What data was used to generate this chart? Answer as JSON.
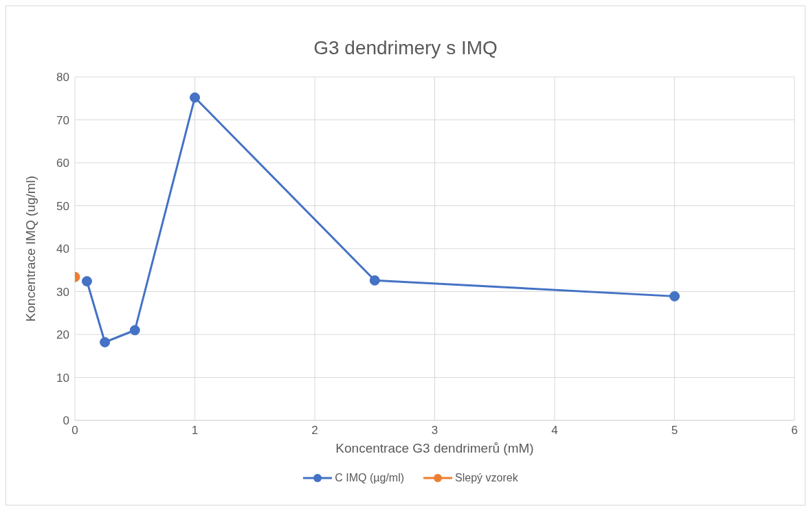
{
  "chart_data": {
    "type": "line",
    "title": "G3 dendrimery s IMQ",
    "xlabel": "Koncentrace G3 dendrimerů (mM)",
    "ylabel": "Koncentrace IMQ (ug/ml)",
    "series": [
      {
        "name": "C IMQ (µg/ml)",
        "color": "#4472c4",
        "x": [
          0.1,
          0.25,
          0.5,
          1,
          2.5,
          5
        ],
        "values": [
          32.4,
          18.2,
          21.0,
          75.2,
          32.6,
          28.9
        ]
      },
      {
        "name": "Slepý vzorek",
        "color": "#ed7d31",
        "x": [
          0
        ],
        "values": [
          33.4
        ]
      }
    ],
    "xlim": [
      0,
      6
    ],
    "xticks": [
      0,
      1,
      2,
      3,
      4,
      5,
      6
    ],
    "ylim": [
      0,
      80
    ],
    "yticks": [
      0,
      10,
      20,
      30,
      40,
      50,
      60,
      70,
      80
    ],
    "grid": true,
    "legend": "bottom",
    "marker": "circle",
    "line_style": "solid"
  }
}
